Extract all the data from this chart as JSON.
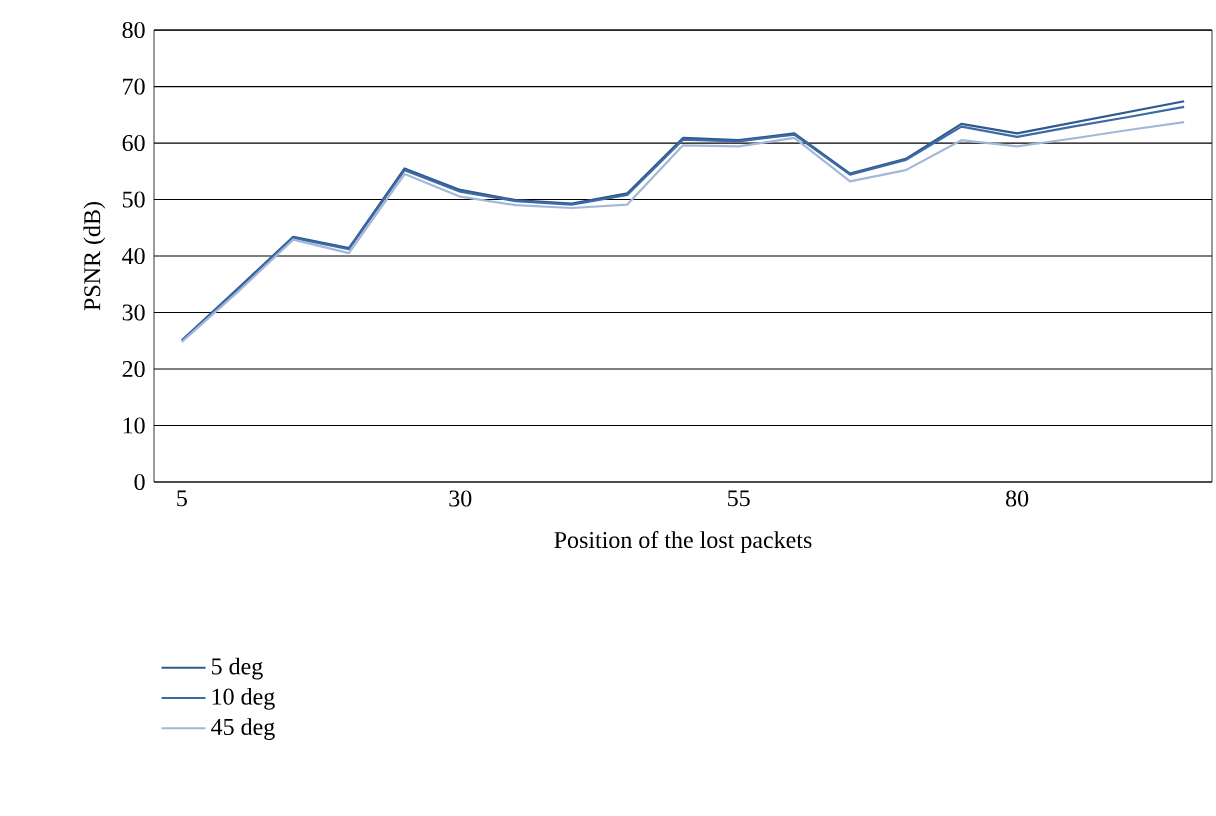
{
  "chart_data": {
    "type": "line",
    "xlabel": "Position of the lost packets",
    "ylabel": "PSNR (dB)",
    "x": [
      5,
      10,
      15,
      20,
      25,
      30,
      35,
      40,
      45,
      50,
      55,
      60,
      65,
      70,
      75,
      80,
      85,
      90,
      95
    ],
    "series": [
      {
        "name": "5 deg",
        "color": "#2e5a8c",
        "values": [
          25.1,
          34.2,
          43.4,
          41.4,
          55.5,
          51.7,
          49.9,
          49.3,
          51.1,
          60.9,
          60.5,
          61.7,
          54.6,
          57.2,
          63.4,
          61.7,
          63.6,
          65.5,
          67.4
        ]
      },
      {
        "name": "10 deg",
        "color": "#3d6aa6",
        "values": [
          25.0,
          34.0,
          43.2,
          41.2,
          55.2,
          51.4,
          49.7,
          49.1,
          50.8,
          60.6,
          60.3,
          61.5,
          54.4,
          57.0,
          62.9,
          61.1,
          62.9,
          64.6,
          66.4
        ]
      },
      {
        "name": "45 deg",
        "color": "#a3b8d8",
        "values": [
          24.8,
          33.6,
          42.9,
          40.5,
          54.5,
          50.5,
          49.0,
          48.5,
          49.1,
          59.6,
          59.4,
          60.9,
          53.2,
          55.2,
          60.5,
          59.4,
          60.8,
          62.3,
          63.7
        ]
      }
    ],
    "xlim": [
      2.5,
      97.5
    ],
    "xticks": [
      5,
      30,
      55,
      80
    ],
    "ylim": [
      0,
      80
    ],
    "yticks": [
      0,
      10,
      20,
      30,
      40,
      50,
      60,
      70,
      80
    ],
    "grid": "y",
    "legend": "bottom left",
    "marker": "none",
    "line_style": "solid"
  }
}
